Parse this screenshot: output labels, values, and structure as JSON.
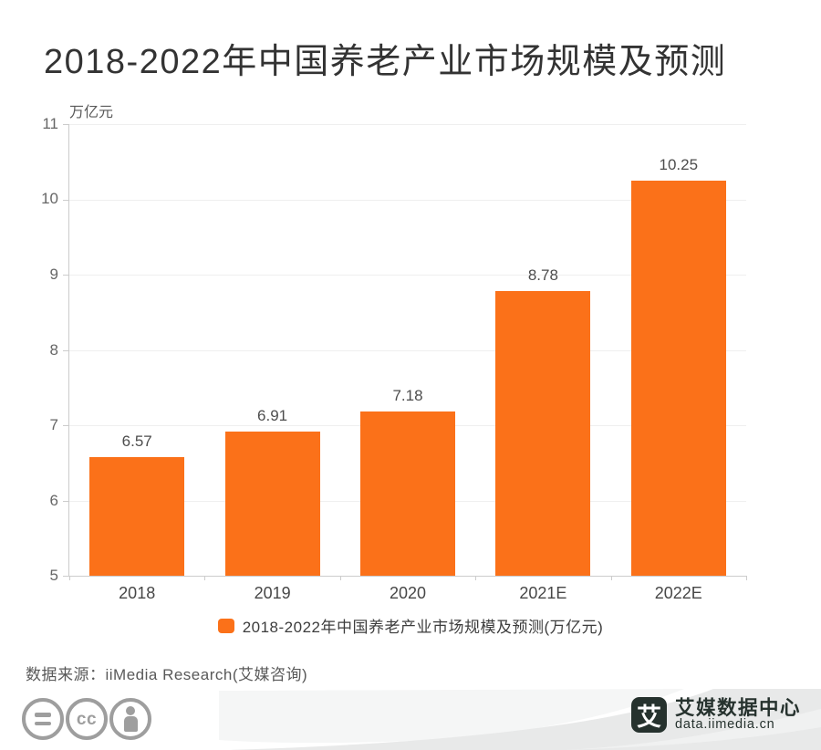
{
  "chart_data": {
    "type": "bar",
    "title": "2018-2022年中国养老产业市场规模及预测",
    "unit_label": "万亿元",
    "categories": [
      "2018",
      "2019",
      "2020",
      "2021E",
      "2022E"
    ],
    "values": [
      6.57,
      6.91,
      7.18,
      8.78,
      10.25
    ],
    "value_labels": [
      "6.57",
      "6.91",
      "7.18",
      "8.78",
      "10.25"
    ],
    "ylim": [
      5,
      11
    ],
    "yticks": [
      5,
      6,
      7,
      8,
      9,
      10,
      11
    ],
    "grid": true,
    "bar_color": "#FB7119",
    "legend": {
      "label": "2018-2022年中国养老产业市场规模及预测(万亿元)",
      "swatch_color": "#FB7119",
      "position": "bottom"
    }
  },
  "source": {
    "text": "数据来源：iiMedia Research(艾媒咨询)"
  },
  "footer": {
    "icons": [
      "equals-circle-icon",
      "cc-circle-icon",
      "person-circle-icon"
    ],
    "icon_color": "#9e9e9e",
    "wave_color": "#e8e9e9",
    "brand": {
      "logo_char": "艾",
      "name": "艾媒数据中心",
      "domain": "data.iimedia.cn",
      "color": "#26322E"
    }
  }
}
